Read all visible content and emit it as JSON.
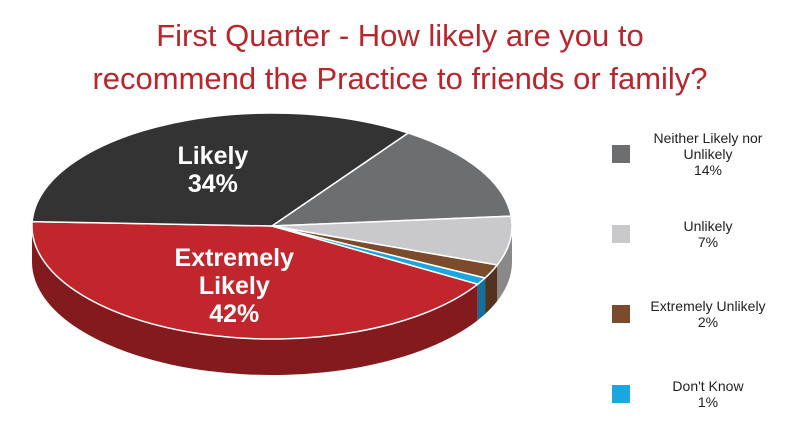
{
  "chart_data": {
    "type": "pie3d",
    "title": [
      "First Quarter - How likely are you to",
      "recommend the Practice to friends or family?"
    ],
    "categories": [
      "Extremely Likely",
      "Likely",
      "Neither Likely nor Unlikely",
      "Unlikely",
      "Extremely Unlikely",
      "Don't Know"
    ],
    "values": [
      42,
      34,
      14,
      7,
      2,
      1
    ],
    "value_labels": [
      "42%",
      "34%",
      "14%",
      "7%",
      "2%",
      "1%"
    ],
    "colors": [
      "#c1262c",
      "#333333",
      "#6d6e70",
      "#c9c9cb",
      "#7b4b2c",
      "#1ba6e2"
    ],
    "label_positions": [
      "inside",
      "inside",
      "legend",
      "legend",
      "legend",
      "legend"
    ]
  }
}
